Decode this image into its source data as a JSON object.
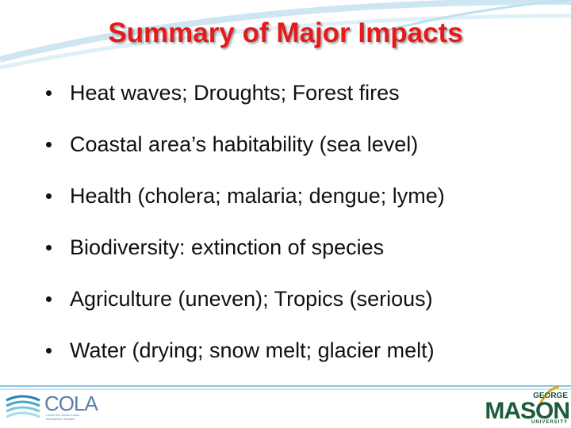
{
  "slide": {
    "title": "Summary of Major Impacts",
    "bullets": [
      "Heat waves; Droughts; Forest fires",
      "Coastal area’s habitability (sea level)",
      "Health (cholera; malaria; dengue; lyme)",
      "Biodiversity: extinction of species",
      "Agriculture (uneven); Tropics (serious)",
      "Water (drying; snow melt; glacier melt)"
    ],
    "footer": {
      "cola_logo": {
        "name": "COLA",
        "tagline": "Center for Ocean-Land-Atmosphere Studies"
      },
      "mason_logo": {
        "top": "GEORGE",
        "name": "MASON",
        "bottom": "UNIVERSITY"
      }
    }
  }
}
